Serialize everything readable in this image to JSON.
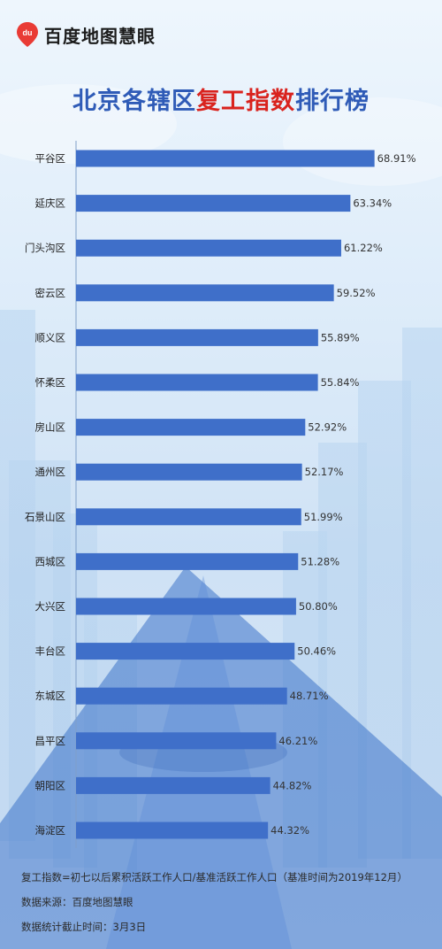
{
  "header": {
    "brand": "百度地图慧眼",
    "logo_icon": "baidu-map-pin-icon",
    "logo_text": "du"
  },
  "title": {
    "part1": "北京各辖区",
    "part2": "复工指数",
    "part3": "排行榜"
  },
  "colors": {
    "bar": "#3f6fc9",
    "title_blue": "#2f5bb7",
    "title_red": "#d9231e"
  },
  "chart_data": {
    "type": "bar",
    "orientation": "horizontal",
    "categories": [
      "平谷区",
      "延庆区",
      "门头沟区",
      "密云区",
      "顺义区",
      "怀柔区",
      "房山区",
      "通州区",
      "石景山区",
      "西城区",
      "大兴区",
      "丰台区",
      "东城区",
      "昌平区",
      "朝阳区",
      "海淀区"
    ],
    "values": [
      68.91,
      63.34,
      61.22,
      59.52,
      55.89,
      55.84,
      52.92,
      52.17,
      51.99,
      51.28,
      50.8,
      50.46,
      48.71,
      46.21,
      44.82,
      44.32
    ],
    "labels": [
      "68.91%",
      "63.34%",
      "61.22%",
      "59.52%",
      "55.89%",
      "55.84%",
      "52.92%",
      "52.17%",
      "51.99%",
      "51.28%",
      "50.80%",
      "50.46%",
      "48.71%",
      "46.21%",
      "44.82%",
      "44.32%"
    ],
    "xlim": [
      0,
      70
    ]
  },
  "footer": {
    "definition": "复工指数=初七以后累积活跃工作人口/基准活跃工作人口（基准时间为2019年12月）",
    "source": "数据来源：百度地图慧眼",
    "cutoff": "数据统计截止时间：3月3日"
  }
}
